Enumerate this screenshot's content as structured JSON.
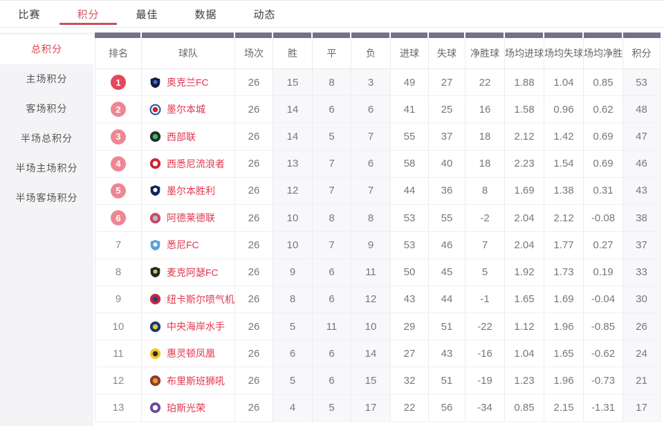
{
  "nav": {
    "tabs": [
      {
        "label": "比赛",
        "active": false
      },
      {
        "label": "积分",
        "active": true
      },
      {
        "label": "最佳",
        "active": false
      },
      {
        "label": "数据",
        "active": false
      },
      {
        "label": "动态",
        "active": false
      }
    ]
  },
  "sidebar": {
    "items": [
      {
        "label": "总积分",
        "active": true
      },
      {
        "label": "主场积分",
        "active": false
      },
      {
        "label": "客场积分",
        "active": false
      },
      {
        "label": "半场总积分",
        "active": false
      },
      {
        "label": "半场主场积分",
        "active": false
      },
      {
        "label": "半场客场积分",
        "active": false
      }
    ]
  },
  "standings": {
    "columns": [
      "排名",
      "球队",
      "场次",
      "胜",
      "平",
      "负",
      "进球",
      "失球",
      "净胜球",
      "场均进球",
      "场均失球",
      "场均净胜",
      "积分"
    ],
    "highlight_column_indexes": [
      3,
      4,
      5,
      12
    ],
    "rows": [
      {
        "rank": 1,
        "badge": "strong",
        "team": "奥克兰FC",
        "logo": {
          "shape": "shield",
          "bg": "#141b3d",
          "fg": "#3d6fc4"
        },
        "played": 26,
        "win": 15,
        "draw": 8,
        "loss": 3,
        "gf": 49,
        "ga": 27,
        "gd": 22,
        "avg_gf": "1.88",
        "avg_ga": "1.04",
        "avg_gd": "0.85",
        "points": 53
      },
      {
        "rank": 2,
        "badge": "light",
        "team": "墨尔本城",
        "logo": {
          "shape": "circle",
          "bg": "#eef3fb",
          "fg": "#d2232a",
          "ring": "#2a4d9b"
        },
        "played": 26,
        "win": 14,
        "draw": 6,
        "loss": 6,
        "gf": 41,
        "ga": 25,
        "gd": 16,
        "avg_gf": "1.58",
        "avg_ga": "0.96",
        "avg_gd": "0.62",
        "points": 48
      },
      {
        "rank": 3,
        "badge": "light",
        "team": "西部联",
        "logo": {
          "shape": "circle",
          "bg": "#2a2a2a",
          "fg": "#35c15d"
        },
        "played": 26,
        "win": 14,
        "draw": 5,
        "loss": 7,
        "gf": 55,
        "ga": 37,
        "gd": 18,
        "avg_gf": "2.12",
        "avg_ga": "1.42",
        "avg_gd": "0.69",
        "points": 47
      },
      {
        "rank": 4,
        "badge": "light",
        "team": "西悉尼流浪者",
        "logo": {
          "shape": "circle",
          "bg": "#ca2332",
          "fg": "#ffffff"
        },
        "played": 26,
        "win": 13,
        "draw": 7,
        "loss": 6,
        "gf": 58,
        "ga": 40,
        "gd": 18,
        "avg_gf": "2.23",
        "avg_ga": "1.54",
        "avg_gd": "0.69",
        "points": 46
      },
      {
        "rank": 5,
        "badge": "light",
        "team": "墨尔本胜利",
        "logo": {
          "shape": "shield",
          "bg": "#11235a",
          "fg": "#ffffff"
        },
        "played": 26,
        "win": 12,
        "draw": 7,
        "loss": 7,
        "gf": 44,
        "ga": 36,
        "gd": 8,
        "avg_gf": "1.69",
        "avg_ga": "1.38",
        "avg_gd": "0.31",
        "points": 43
      },
      {
        "rank": 6,
        "badge": "light",
        "team": "阿德莱德联",
        "logo": {
          "shape": "circle",
          "bg": "#d64458",
          "fg": "#9dc3e8"
        },
        "played": 26,
        "win": 10,
        "draw": 8,
        "loss": 8,
        "gf": 53,
        "ga": 55,
        "gd": -2,
        "avg_gf": "2.04",
        "avg_ga": "2.12",
        "avg_gd": "-0.08",
        "points": 38
      },
      {
        "rank": 7,
        "badge": "none",
        "team": "悉尼FC",
        "logo": {
          "shape": "shield",
          "bg": "#5a9fd6",
          "fg": "#ffffff"
        },
        "played": 26,
        "win": 10,
        "draw": 7,
        "loss": 9,
        "gf": 53,
        "ga": 46,
        "gd": 7,
        "avg_gf": "2.04",
        "avg_ga": "1.77",
        "avg_gd": "0.27",
        "points": 37
      },
      {
        "rank": 8,
        "badge": "none",
        "team": "麦克阿瑟FC",
        "logo": {
          "shape": "shield",
          "bg": "#24241f",
          "fg": "#d8c06a"
        },
        "played": 26,
        "win": 9,
        "draw": 6,
        "loss": 11,
        "gf": 50,
        "ga": 45,
        "gd": 5,
        "avg_gf": "1.92",
        "avg_ga": "1.73",
        "avg_gd": "0.19",
        "points": 33
      },
      {
        "rank": 9,
        "badge": "none",
        "team": "纽卡斯尔喷气机",
        "logo": {
          "shape": "circle",
          "bg": "#c62b39",
          "fg": "#27418f"
        },
        "played": 26,
        "win": 8,
        "draw": 6,
        "loss": 12,
        "gf": 43,
        "ga": 44,
        "gd": -1,
        "avg_gf": "1.65",
        "avg_ga": "1.69",
        "avg_gd": "-0.04",
        "points": 30
      },
      {
        "rank": 10,
        "badge": "none",
        "team": "中央海岸水手",
        "logo": {
          "shape": "circle",
          "bg": "#123a75",
          "fg": "#f2c23e"
        },
        "played": 26,
        "win": 5,
        "draw": 11,
        "loss": 10,
        "gf": 29,
        "ga": 51,
        "gd": -22,
        "avg_gf": "1.12",
        "avg_ga": "1.96",
        "avg_gd": "-0.85",
        "points": 26
      },
      {
        "rank": 11,
        "badge": "none",
        "team": "惠灵顿凤凰",
        "logo": {
          "shape": "circle",
          "bg": "#f3c428",
          "fg": "#2b2b2b"
        },
        "played": 26,
        "win": 6,
        "draw": 6,
        "loss": 14,
        "gf": 27,
        "ga": 43,
        "gd": -16,
        "avg_gf": "1.04",
        "avg_ga": "1.65",
        "avg_gd": "-0.62",
        "points": 24
      },
      {
        "rank": 12,
        "badge": "none",
        "team": "布里斯班狮吼",
        "logo": {
          "shape": "circle",
          "bg": "#8c3b2e",
          "fg": "#f0952d"
        },
        "played": 26,
        "win": 5,
        "draw": 6,
        "loss": 15,
        "gf": 32,
        "ga": 51,
        "gd": -19,
        "avg_gf": "1.23",
        "avg_ga": "1.96",
        "avg_gd": "-0.73",
        "points": 21
      },
      {
        "rank": 13,
        "badge": "none",
        "team": "珀斯光荣",
        "logo": {
          "shape": "circle",
          "bg": "#6a4b9e",
          "fg": "#ffffff"
        },
        "played": 26,
        "win": 4,
        "draw": 5,
        "loss": 17,
        "gf": 22,
        "ga": 56,
        "gd": -34,
        "avg_gf": "0.85",
        "avg_ga": "2.15",
        "avg_gd": "-1.31",
        "points": 17
      }
    ]
  },
  "colors": {
    "accent_red": "#cf5560",
    "underline_red": "#c4515c",
    "team_red": "#e1374e",
    "badge_rank1": "#e4485c",
    "badge_rank2to6": "#ee8793",
    "header_strip": "#72728c",
    "sidebar_bg": "#f4f4f6",
    "highlight_col_bg": "#f8f8fb"
  }
}
